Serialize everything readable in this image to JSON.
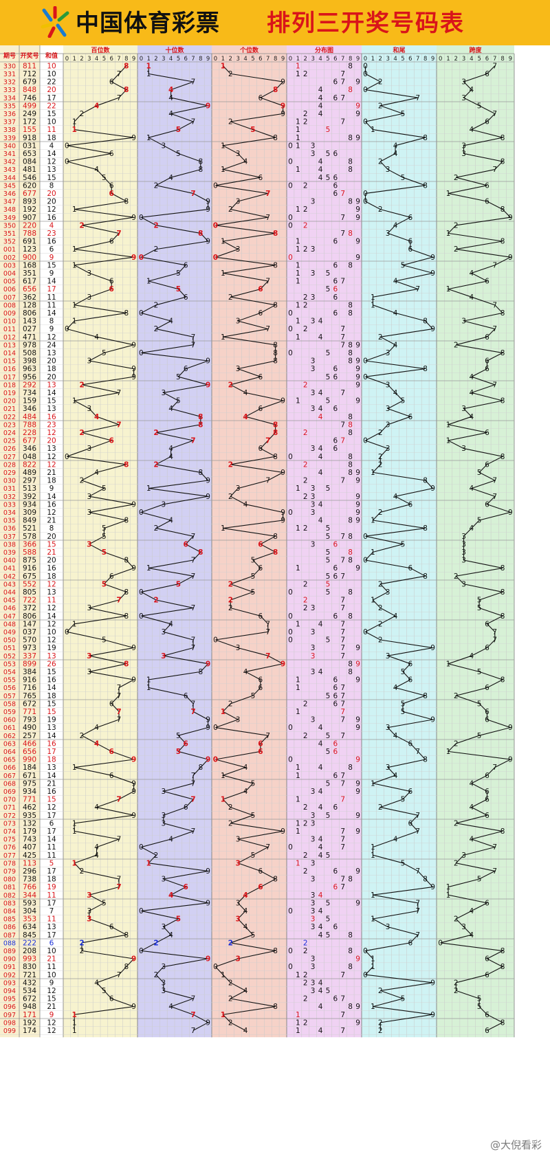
{
  "header": {
    "brand": "中国体育彩票",
    "title": "排列三开奖号码表"
  },
  "watermark": "@大倪看彩",
  "colors": {
    "header_bg": "#f8ba18",
    "hot": "#d9141a",
    "blue": "#1a2fd8",
    "line": "#111111",
    "band_bai": "#f7f3cf",
    "band_shi": "#d2d0f3",
    "band_ge": "#f6d2c8",
    "band_fen": "#f0d2f3",
    "band_he": "#cff3f4",
    "band_kua": "#d7f1d6"
  },
  "chart_data": {
    "type": "table",
    "title": "排列三开奖号码表",
    "columns": {
      "qihao": "期号",
      "haoma": "开奖号",
      "hezhi": "和值"
    },
    "sections": [
      "百位数",
      "十位数",
      "个位数",
      "分布图",
      "和尾",
      "跨度"
    ],
    "digits": [
      "0",
      "1",
      "2",
      "3",
      "4",
      "5",
      "6",
      "7",
      "8",
      "9"
    ],
    "rows": [
      {
        "p": "330",
        "n": "811",
        "red": true
      },
      {
        "p": "331",
        "n": "712"
      },
      {
        "p": "332",
        "n": "679"
      },
      {
        "p": "333",
        "n": "848",
        "red": true
      },
      {
        "p": "334",
        "n": "746"
      },
      {
        "p": "335",
        "n": "499",
        "red": true
      },
      {
        "p": "336",
        "n": "249"
      },
      {
        "p": "337",
        "n": "172"
      },
      {
        "p": "338",
        "n": "155",
        "red": true
      },
      {
        "p": "339",
        "n": "918"
      },
      {
        "p": "340",
        "n": "031"
      },
      {
        "p": "341",
        "n": "653"
      },
      {
        "p": "342",
        "n": "084"
      },
      {
        "p": "343",
        "n": "481"
      },
      {
        "p": "344",
        "n": "546"
      },
      {
        "p": "345",
        "n": "620"
      },
      {
        "p": "346",
        "n": "677",
        "red": true
      },
      {
        "p": "347",
        "n": "893"
      },
      {
        "p": "348",
        "n": "192"
      },
      {
        "p": "349",
        "n": "907"
      },
      {
        "p": "350",
        "n": "220",
        "red": true
      },
      {
        "p": "351",
        "n": "788",
        "red": true
      },
      {
        "p": "352",
        "n": "691"
      },
      {
        "p": "001",
        "n": "123"
      },
      {
        "p": "002",
        "n": "900",
        "red": true
      },
      {
        "p": "003",
        "n": "168"
      },
      {
        "p": "004",
        "n": "351"
      },
      {
        "p": "005",
        "n": "617"
      },
      {
        "p": "006",
        "n": "656",
        "red": true
      },
      {
        "p": "007",
        "n": "362"
      },
      {
        "p": "008",
        "n": "128"
      },
      {
        "p": "009",
        "n": "806"
      },
      {
        "p": "010",
        "n": "143"
      },
      {
        "p": "011",
        "n": "027"
      },
      {
        "p": "012",
        "n": "471"
      },
      {
        "p": "013",
        "n": "978"
      },
      {
        "p": "014",
        "n": "508"
      },
      {
        "p": "015",
        "n": "398"
      },
      {
        "p": "016",
        "n": "963"
      },
      {
        "p": "017",
        "n": "956"
      },
      {
        "p": "018",
        "n": "292",
        "red": true
      },
      {
        "p": "019",
        "n": "734"
      },
      {
        "p": "020",
        "n": "159"
      },
      {
        "p": "021",
        "n": "346"
      },
      {
        "p": "022",
        "n": "484",
        "red": true
      },
      {
        "p": "023",
        "n": "788",
        "red": true
      },
      {
        "p": "024",
        "n": "228",
        "red": true
      },
      {
        "p": "025",
        "n": "677",
        "red": true
      },
      {
        "p": "026",
        "n": "346"
      },
      {
        "p": "027",
        "n": "048"
      },
      {
        "p": "028",
        "n": "822",
        "red": true
      },
      {
        "p": "029",
        "n": "489"
      },
      {
        "p": "030",
        "n": "297"
      },
      {
        "p": "031",
        "n": "513"
      },
      {
        "p": "032",
        "n": "392"
      },
      {
        "p": "033",
        "n": "934"
      },
      {
        "p": "034",
        "n": "309"
      },
      {
        "p": "035",
        "n": "849"
      },
      {
        "p": "036",
        "n": "521"
      },
      {
        "p": "037",
        "n": "578"
      },
      {
        "p": "038",
        "n": "366",
        "red": true
      },
      {
        "p": "039",
        "n": "588",
        "red": true
      },
      {
        "p": "040",
        "n": "875"
      },
      {
        "p": "041",
        "n": "916"
      },
      {
        "p": "042",
        "n": "675"
      },
      {
        "p": "043",
        "n": "552",
        "red": true
      },
      {
        "p": "044",
        "n": "805"
      },
      {
        "p": "045",
        "n": "722",
        "red": true
      },
      {
        "p": "046",
        "n": "372"
      },
      {
        "p": "047",
        "n": "806"
      },
      {
        "p": "048",
        "n": "147"
      },
      {
        "p": "049",
        "n": "037"
      },
      {
        "p": "050",
        "n": "570"
      },
      {
        "p": "051",
        "n": "973"
      },
      {
        "p": "052",
        "n": "337",
        "red": true
      },
      {
        "p": "053",
        "n": "899",
        "red": true
      },
      {
        "p": "054",
        "n": "384"
      },
      {
        "p": "055",
        "n": "916"
      },
      {
        "p": "056",
        "n": "716"
      },
      {
        "p": "057",
        "n": "765"
      },
      {
        "p": "058",
        "n": "672"
      },
      {
        "p": "059",
        "n": "771",
        "red": true
      },
      {
        "p": "060",
        "n": "793"
      },
      {
        "p": "061",
        "n": "490"
      },
      {
        "p": "062",
        "n": "257"
      },
      {
        "p": "063",
        "n": "466",
        "red": true
      },
      {
        "p": "064",
        "n": "656",
        "red": true
      },
      {
        "p": "065",
        "n": "990",
        "red": true
      },
      {
        "p": "066",
        "n": "184"
      },
      {
        "p": "067",
        "n": "671"
      },
      {
        "p": "068",
        "n": "975"
      },
      {
        "p": "069",
        "n": "934"
      },
      {
        "p": "070",
        "n": "771",
        "red": true
      },
      {
        "p": "071",
        "n": "462"
      },
      {
        "p": "072",
        "n": "935"
      },
      {
        "p": "073",
        "n": "132"
      },
      {
        "p": "074",
        "n": "179"
      },
      {
        "p": "075",
        "n": "743"
      },
      {
        "p": "076",
        "n": "407"
      },
      {
        "p": "077",
        "n": "425"
      },
      {
        "p": "078",
        "n": "113",
        "red": true
      },
      {
        "p": "079",
        "n": "296"
      },
      {
        "p": "080",
        "n": "738"
      },
      {
        "p": "081",
        "n": "766",
        "red": true
      },
      {
        "p": "082",
        "n": "344",
        "red": true
      },
      {
        "p": "083",
        "n": "593"
      },
      {
        "p": "084",
        "n": "304"
      },
      {
        "p": "085",
        "n": "353",
        "red": true
      },
      {
        "p": "086",
        "n": "634"
      },
      {
        "p": "087",
        "n": "845"
      },
      {
        "p": "088",
        "n": "222",
        "blue": true
      },
      {
        "p": "089",
        "n": "208"
      },
      {
        "p": "090",
        "n": "993",
        "red": true
      },
      {
        "p": "091",
        "n": "830"
      },
      {
        "p": "092",
        "n": "721"
      },
      {
        "p": "093",
        "n": "432"
      },
      {
        "p": "094",
        "n": "534"
      },
      {
        "p": "095",
        "n": "672"
      },
      {
        "p": "096",
        "n": "948"
      },
      {
        "p": "097",
        "n": "171",
        "red": true
      },
      {
        "p": "098",
        "n": "192"
      },
      {
        "p": "099",
        "n": "174"
      }
    ]
  }
}
